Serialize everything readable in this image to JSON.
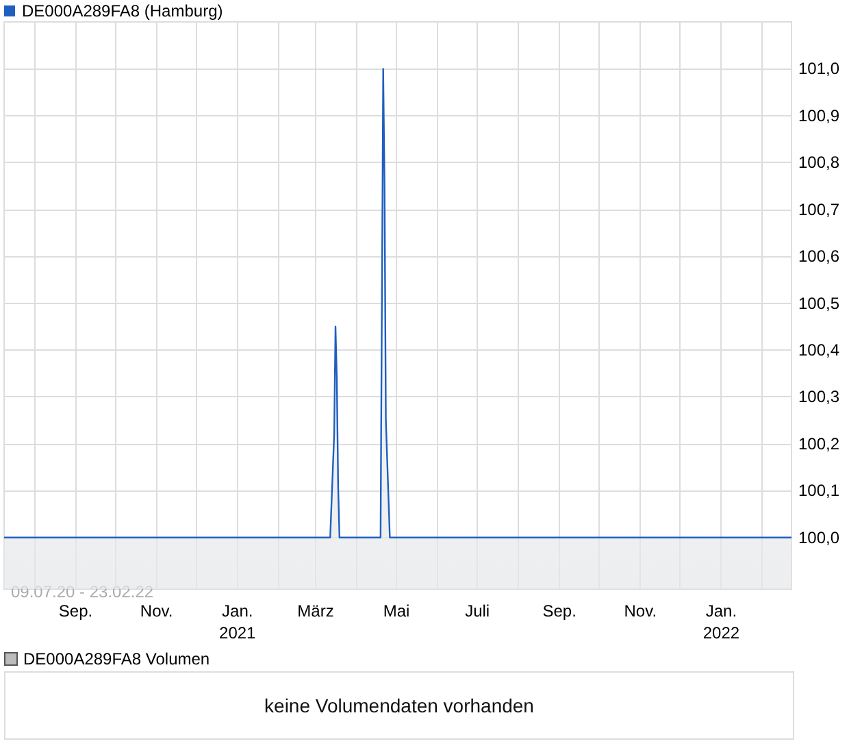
{
  "chart_data": [
    {
      "type": "area",
      "legend": "top left",
      "grid": true,
      "marker": "none",
      "annotations": [
        "09.07.20 - 23.02.22"
      ],
      "series": [
        {
          "name": "DE000A289FA8 (Hamburg)",
          "color": "#1f5fbf",
          "x": [
            "2020-07-09",
            "2021-03-12",
            "2021-03-15",
            "2021-03-16",
            "2021-03-17",
            "2021-03-18",
            "2021-03-19",
            "2021-04-19",
            "2021-04-20",
            "2021-04-21",
            "2021-04-22",
            "2021-04-23",
            "2021-04-26",
            "2022-02-23"
          ],
          "values": [
            100.0,
            100.0,
            100.22,
            100.45,
            100.34,
            100.11,
            100.0,
            100.0,
            100.5,
            101.0,
            100.75,
            100.25,
            100.0,
            100.0
          ]
        }
      ],
      "xlim": [
        "2020-07-09",
        "2022-02-23"
      ],
      "xticks": [
        {
          "value": "2020-08",
          "label": null
        },
        {
          "value": "2020-09",
          "label": "Sep."
        },
        {
          "value": "2020-10",
          "label": null
        },
        {
          "value": "2020-11",
          "label": "Nov."
        },
        {
          "value": "2020-12",
          "label": null
        },
        {
          "value": "2021-01",
          "label": "Jan.\n2021"
        },
        {
          "value": "2021-02",
          "label": null
        },
        {
          "value": "2021-03",
          "label": "März"
        },
        {
          "value": "2021-04",
          "label": null
        },
        {
          "value": "2021-05",
          "label": "Mai"
        },
        {
          "value": "2021-06",
          "label": null
        },
        {
          "value": "2021-07",
          "label": "Juli"
        },
        {
          "value": "2021-08",
          "label": null
        },
        {
          "value": "2021-09",
          "label": "Sep."
        },
        {
          "value": "2021-10",
          "label": null
        },
        {
          "value": "2021-11",
          "label": "Nov."
        },
        {
          "value": "2021-12",
          "label": null
        },
        {
          "value": "2022-01",
          "label": "Jan.\n2022"
        },
        {
          "value": "2022-02",
          "label": null
        }
      ],
      "ylim": [
        99.89,
        101.1
      ],
      "yticks": [
        {
          "value": 100.0,
          "label": "100,0"
        },
        {
          "value": 100.1,
          "label": "100,1"
        },
        {
          "value": 100.2,
          "label": "100,2"
        },
        {
          "value": 100.3,
          "label": "100,3"
        },
        {
          "value": 100.4,
          "label": "100,4"
        },
        {
          "value": 100.5,
          "label": "100,5"
        },
        {
          "value": 100.6,
          "label": "100,6"
        },
        {
          "value": 100.7,
          "label": "100,7"
        },
        {
          "value": 100.8,
          "label": "100,8"
        },
        {
          "value": 100.9,
          "label": "100,9"
        },
        {
          "value": 101.0,
          "label": "101,0"
        }
      ]
    },
    {
      "type": "other",
      "title": "DE000A289FA8 Volumen",
      "annotations": [
        "keine Volumendaten vorhanden"
      ]
    }
  ]
}
